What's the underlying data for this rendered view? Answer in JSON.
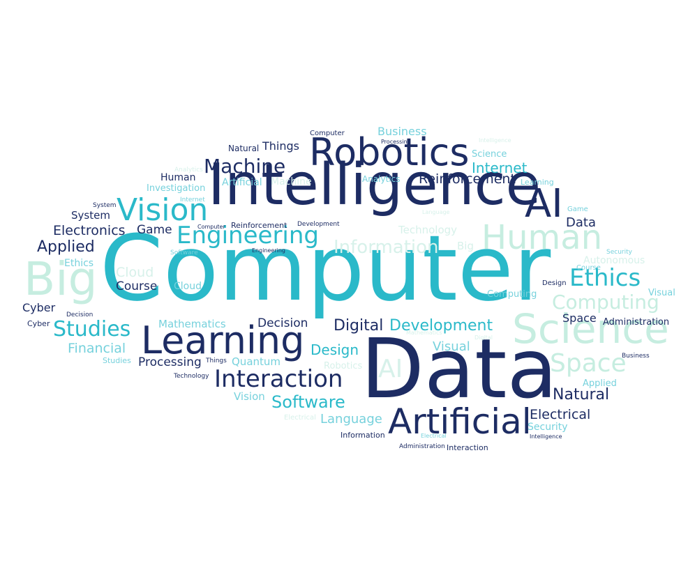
{
  "palette": {
    "navy": "#1d2c63",
    "teal": "#2ab9c9",
    "light_teal": "#76d1dc",
    "mint": "#c6ede0",
    "pale_mint": "#d7f1ea",
    "background": "#ffffff"
  },
  "words": [
    {
      "text": "Computer",
      "tone": "teal"
    },
    {
      "text": "Data",
      "tone": "navy"
    },
    {
      "text": "Intelligence",
      "tone": "navy"
    },
    {
      "text": "Robotics",
      "tone": "navy"
    },
    {
      "text": "Learning",
      "tone": "navy"
    },
    {
      "text": "Artificial",
      "tone": "navy"
    },
    {
      "text": "Science",
      "tone": "mint"
    },
    {
      "text": "Big",
      "tone": "mint"
    },
    {
      "text": "Human",
      "tone": "mint"
    },
    {
      "text": "AI",
      "tone": "navy"
    },
    {
      "text": "Vision",
      "tone": "teal"
    },
    {
      "text": "Engineering",
      "tone": "teal"
    },
    {
      "text": "Interaction",
      "tone": "navy"
    },
    {
      "text": "Machine",
      "tone": "navy"
    },
    {
      "text": "Ethics",
      "tone": "teal"
    },
    {
      "text": "Computing",
      "tone": "mint"
    },
    {
      "text": "Space",
      "tone": "mint"
    },
    {
      "text": "Studies",
      "tone": "teal"
    },
    {
      "text": "Development",
      "tone": "teal"
    },
    {
      "text": "Software",
      "tone": "teal"
    },
    {
      "text": "Information",
      "tone": "pale_mint"
    },
    {
      "text": "AI",
      "tone": "pale_mint"
    },
    {
      "text": "Digital",
      "tone": "navy"
    },
    {
      "text": "Natural",
      "tone": "navy"
    },
    {
      "text": "Applied",
      "tone": "navy"
    },
    {
      "text": "Reinforcement",
      "tone": "navy"
    },
    {
      "text": "Internet",
      "tone": "teal"
    },
    {
      "text": "Electronics",
      "tone": "navy"
    },
    {
      "text": "Design",
      "tone": "teal"
    },
    {
      "text": "Financial",
      "tone": "light_teal"
    },
    {
      "text": "Processing",
      "tone": "navy"
    },
    {
      "text": "Course",
      "tone": "navy"
    },
    {
      "text": "Cloud",
      "tone": "pale_mint"
    },
    {
      "text": "Decision",
      "tone": "navy"
    },
    {
      "text": "Electrical",
      "tone": "navy"
    },
    {
      "text": "Visual",
      "tone": "light_teal"
    },
    {
      "text": "Language",
      "tone": "light_teal"
    },
    {
      "text": "Mathematics",
      "tone": "light_teal"
    },
    {
      "text": "Business",
      "tone": "light_teal"
    },
    {
      "text": "Things",
      "tone": "navy"
    },
    {
      "text": "Game",
      "tone": "navy"
    },
    {
      "text": "Data",
      "tone": "navy"
    },
    {
      "text": "Security",
      "tone": "light_teal"
    },
    {
      "text": "Technology",
      "tone": "pale_mint"
    },
    {
      "text": "Quantum",
      "tone": "light_teal"
    },
    {
      "text": "Vision",
      "tone": "light_teal"
    },
    {
      "text": "Science",
      "tone": "light_teal"
    },
    {
      "text": "Ethics",
      "tone": "light_teal"
    },
    {
      "text": "Cyber",
      "tone": "navy"
    },
    {
      "text": "System",
      "tone": "navy"
    },
    {
      "text": "Big",
      "tone": "pale_mint"
    },
    {
      "text": "Autonomous",
      "tone": "pale_mint"
    },
    {
      "text": "Space",
      "tone": "navy"
    },
    {
      "text": "Administration",
      "tone": "navy"
    },
    {
      "text": "Human",
      "tone": "navy"
    },
    {
      "text": "Investigation",
      "tone": "light_teal"
    },
    {
      "text": "Analytics",
      "tone": "pale_mint"
    },
    {
      "text": "Artificial",
      "tone": "light_teal"
    },
    {
      "text": "Machine",
      "tone": "pale_mint"
    },
    {
      "text": "Natural",
      "tone": "navy"
    },
    {
      "text": "Cloud",
      "tone": "light_teal"
    },
    {
      "text": "Applied",
      "tone": "light_teal"
    },
    {
      "text": "Computing",
      "tone": "light_teal"
    },
    {
      "text": "Robotics",
      "tone": "pale_mint"
    },
    {
      "text": "Course",
      "tone": "light_teal"
    },
    {
      "text": "Visual",
      "tone": "light_teal"
    },
    {
      "text": "Cyber",
      "tone": "navy"
    },
    {
      "text": "Computer",
      "tone": "navy"
    },
    {
      "text": "Processing",
      "tone": "navy"
    },
    {
      "text": "Intelligence",
      "tone": "pale_mint"
    },
    {
      "text": "Learning",
      "tone": "light_teal"
    },
    {
      "text": "Analytics",
      "tone": "light_teal"
    },
    {
      "text": "System",
      "tone": "navy"
    },
    {
      "text": "Internet",
      "tone": "light_teal"
    },
    {
      "text": "Computer",
      "tone": "navy"
    },
    {
      "text": "Reinforcement",
      "tone": "navy"
    },
    {
      "text": "Development",
      "tone": "navy"
    },
    {
      "text": "Game",
      "tone": "light_teal"
    },
    {
      "text": "Security",
      "tone": "light_teal"
    },
    {
      "text": "Software",
      "tone": "light_teal"
    },
    {
      "text": "Electrical",
      "tone": "pale_mint"
    },
    {
      "text": "Engineering",
      "tone": "navy"
    },
    {
      "text": "Design",
      "tone": "navy"
    },
    {
      "text": "Decision",
      "tone": "navy"
    },
    {
      "text": "Things",
      "tone": "navy"
    },
    {
      "text": "Studies",
      "tone": "light_teal"
    },
    {
      "text": "Technology",
      "tone": "navy"
    },
    {
      "text": "Business",
      "tone": "navy"
    },
    {
      "text": "Mathematics",
      "tone": "pale_mint"
    },
    {
      "text": "Information",
      "tone": "navy"
    },
    {
      "text": "Intelligence",
      "tone": "navy"
    },
    {
      "text": "Administration",
      "tone": "navy"
    },
    {
      "text": "Interaction",
      "tone": "navy"
    },
    {
      "text": "Electrical",
      "tone": "light_teal"
    },
    {
      "text": "Digital",
      "tone": "pale_mint"
    },
    {
      "text": "Language",
      "tone": "pale_mint"
    }
  ]
}
